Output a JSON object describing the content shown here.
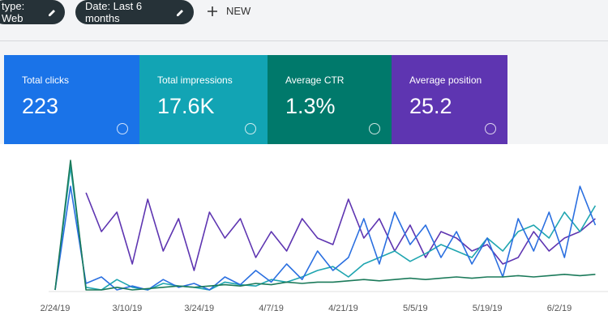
{
  "filters": [
    "type: Web",
    "Date: Last 6 months"
  ],
  "new_button": "NEW",
  "metrics": [
    {
      "label": "Total clicks",
      "value": "223"
    },
    {
      "label": "Total impressions",
      "value": "17.6K"
    },
    {
      "label": "Average CTR",
      "value": "1.3%"
    },
    {
      "label": "Average position",
      "value": "25.2"
    }
  ],
  "chart_data": {
    "type": "line",
    "x_labels": [
      "2/24/19",
      "3/10/19",
      "3/24/19",
      "4/7/19",
      "4/21/19",
      "5/5/19",
      "5/19/19",
      "6/2/19"
    ],
    "ylim": [
      0,
      100
    ],
    "series": [
      {
        "color": "#5e35b1",
        "values": [
          null,
          null,
          75,
          45,
          60,
          20,
          70,
          30,
          55,
          15,
          60,
          40,
          55,
          25,
          45,
          30,
          55,
          40,
          35,
          70,
          40,
          55,
          30,
          50,
          25,
          45,
          40,
          30,
          35,
          20,
          25,
          45,
          30,
          40,
          45,
          55
        ]
      },
      {
        "color": "#1fa5b0",
        "values": [
          0,
          95,
          2,
          0,
          8,
          2,
          0,
          5,
          3,
          2,
          0,
          6,
          4,
          3,
          8,
          6,
          10,
          15,
          18,
          10,
          20,
          25,
          30,
          22,
          28,
          35,
          30,
          25,
          40,
          30,
          45,
          50,
          40,
          60,
          45,
          65
        ]
      },
      {
        "color": "#2a6fe0",
        "values": [
          0,
          80,
          5,
          10,
          0,
          3,
          0,
          8,
          2,
          5,
          0,
          10,
          4,
          15,
          6,
          20,
          8,
          30,
          15,
          25,
          55,
          20,
          60,
          35,
          50,
          25,
          45,
          20,
          40,
          10,
          55,
          30,
          60,
          25,
          80,
          50
        ]
      },
      {
        "color": "#1b7a5a",
        "values": [
          0,
          100,
          0,
          0,
          2,
          0,
          1,
          2,
          3,
          2,
          3,
          4,
          3,
          5,
          4,
          6,
          5,
          6,
          6,
          7,
          8,
          7,
          8,
          9,
          8,
          9,
          10,
          9,
          10,
          10,
          11,
          10,
          11,
          12,
          11,
          12
        ]
      }
    ]
  }
}
